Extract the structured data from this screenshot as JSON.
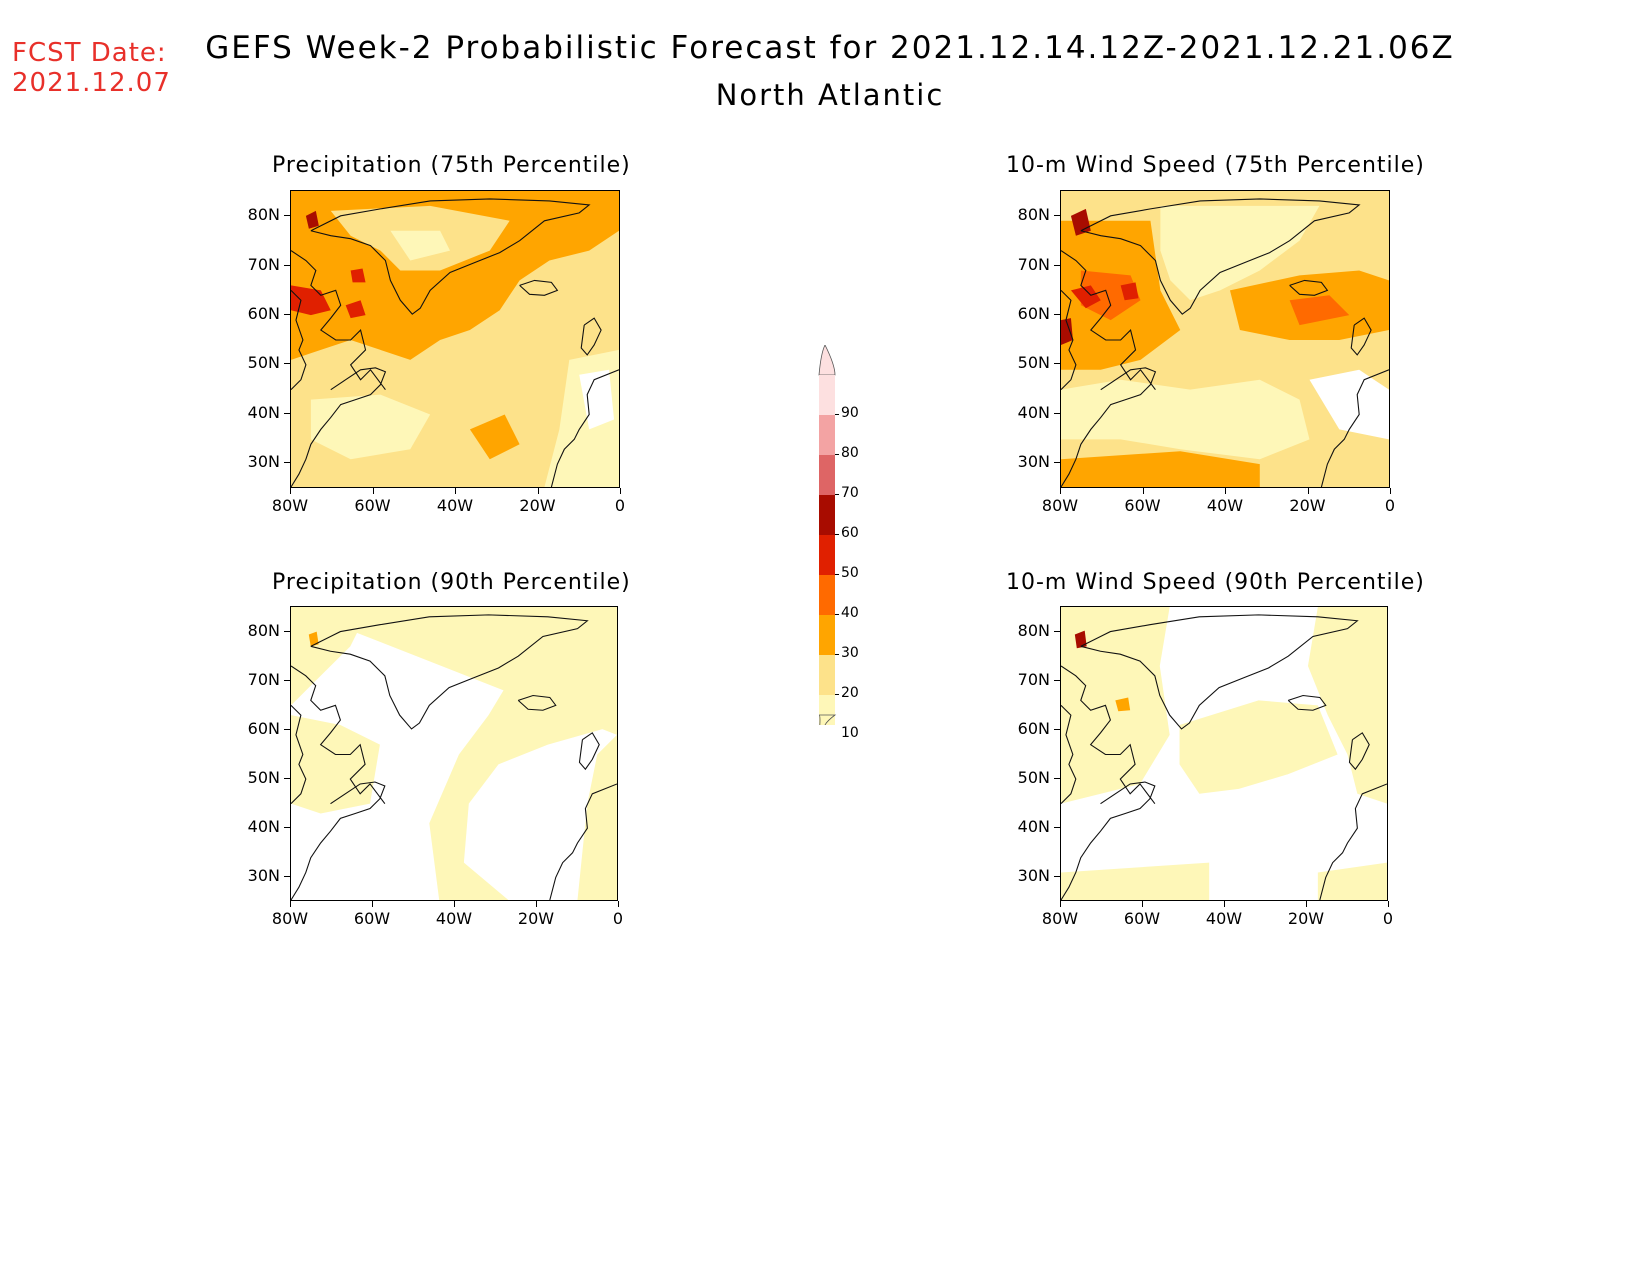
{
  "header": {
    "fcst_label": "FCST Date:",
    "fcst_date": "2021.12.07",
    "title": "GEFS Week-2 Probabilistic Forecast for 2021.12.14.12Z-2021.12.21.06Z",
    "region": "North Atlantic"
  },
  "panels": [
    {
      "title": "Precipitation (75th Percentile)"
    },
    {
      "title": "10-m Wind Speed (75th Percentile)"
    },
    {
      "title": "Precipitation (90th Percentile)"
    },
    {
      "title": "10-m Wind Speed (90th Percentile)"
    }
  ],
  "axes": {
    "lat_labels": [
      "80N",
      "70N",
      "60N",
      "50N",
      "40N",
      "30N"
    ],
    "lon_labels": [
      "80W",
      "60W",
      "40W",
      "20W",
      "0"
    ]
  },
  "colorbar": {
    "labels": [
      "90",
      "80",
      "70",
      "60",
      "50",
      "40",
      "30",
      "20",
      "10"
    ],
    "colors": [
      "#fde0e0",
      "#f3a3a3",
      "#de6565",
      "#a80c00",
      "#e02000",
      "#ff6a00",
      "#ffa500",
      "#fde28a",
      "#fef7b8"
    ]
  }
}
